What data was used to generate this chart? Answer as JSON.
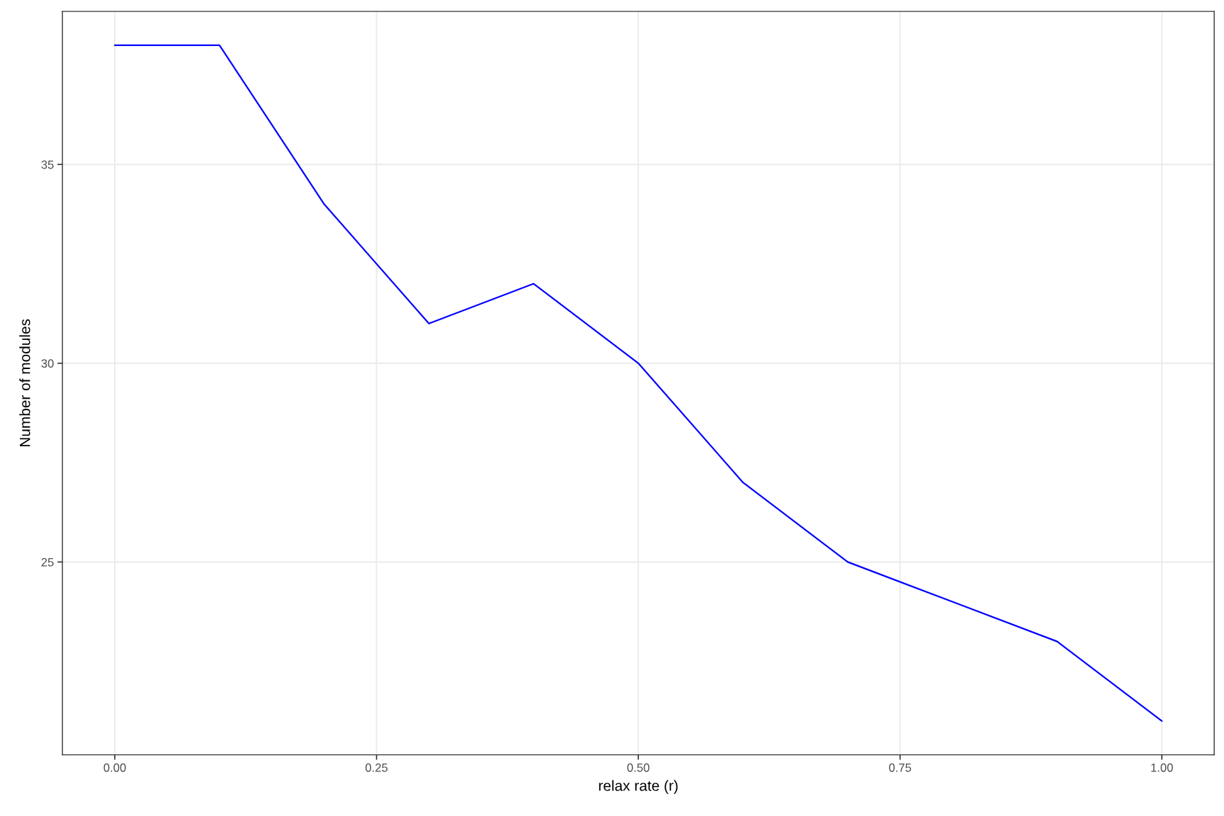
{
  "chart_data": {
    "type": "line",
    "xlabel": "relax rate (r)",
    "ylabel": "Number of modules",
    "x": [
      0.0,
      0.1,
      0.2,
      0.3,
      0.4,
      0.5,
      0.6,
      0.7,
      0.8,
      0.9,
      1.0
    ],
    "series": [
      {
        "color": "#0000ff",
        "values": [
          38,
          38,
          34,
          31,
          32,
          30,
          27,
          25,
          24,
          23,
          21
        ]
      }
    ],
    "xlim": [
      -0.05,
      1.05
    ],
    "xticks": [
      {
        "value": 0,
        "label": "0.00"
      },
      {
        "value": 0.25,
        "label": "0.25"
      },
      {
        "value": 0.5,
        "label": "0.50"
      },
      {
        "value": 0.75,
        "label": "0.75"
      },
      {
        "value": 1,
        "label": "1.00"
      }
    ],
    "ylim": [
      20.15,
      38.85
    ],
    "yticks": [
      25,
      30,
      35
    ],
    "grid": true,
    "marker": "none",
    "line_style": "solid"
  }
}
